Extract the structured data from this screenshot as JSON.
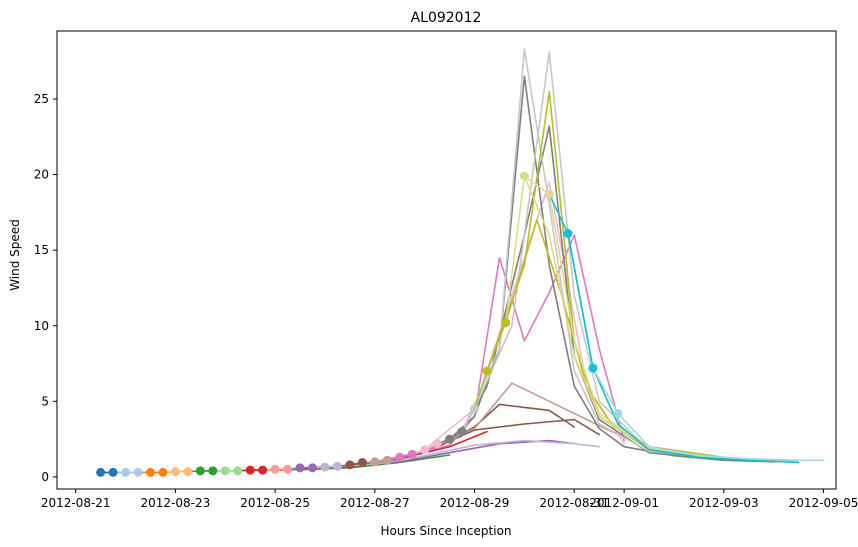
{
  "chart_data": {
    "type": "line",
    "title": "AL092012",
    "xlabel": "Hours Since Inception",
    "ylabel": "Wind Speed",
    "x_scale": "date",
    "xlim": [
      "2012-08-20T15:00",
      "2012-09-05T06:00"
    ],
    "ylim": [
      -0.8,
      29.5
    ],
    "x_ticks": [
      "2012-08-21",
      "2012-08-23",
      "2012-08-25",
      "2012-08-27",
      "2012-08-29",
      "2012-08-31",
      "2012-09-01",
      "2012-09-03",
      "2012-09-05"
    ],
    "x_tick_labels": [
      "2012-08-21",
      "2012-08-23",
      "2012-08-25",
      "2012-08-27",
      "2012-08-29",
      "2012-08-31",
      "2012-09-01",
      "2012-09-03",
      "2012-09-05"
    ],
    "y_ticks": [
      0,
      5,
      10,
      15,
      20,
      25
    ],
    "y_tick_labels": [
      "0",
      "5",
      "10",
      "15",
      "20",
      "25"
    ],
    "grid": false,
    "legend": "none",
    "observed_points": [
      {
        "x": "2012-08-21T12:00",
        "y": 0.3,
        "color": "#1f77b4"
      },
      {
        "x": "2012-08-21T18:00",
        "y": 0.3,
        "color": "#1f77b4"
      },
      {
        "x": "2012-08-22T00:00",
        "y": 0.3,
        "color": "#aec7e8"
      },
      {
        "x": "2012-08-22T06:00",
        "y": 0.3,
        "color": "#aec7e8"
      },
      {
        "x": "2012-08-22T12:00",
        "y": 0.3,
        "color": "#ff7f0e"
      },
      {
        "x": "2012-08-22T18:00",
        "y": 0.3,
        "color": "#ff7f0e"
      },
      {
        "x": "2012-08-23T00:00",
        "y": 0.35,
        "color": "#ffbb78"
      },
      {
        "x": "2012-08-23T06:00",
        "y": 0.35,
        "color": "#ffbb78"
      },
      {
        "x": "2012-08-23T12:00",
        "y": 0.4,
        "color": "#2ca02c"
      },
      {
        "x": "2012-08-23T18:00",
        "y": 0.4,
        "color": "#2ca02c"
      },
      {
        "x": "2012-08-24T00:00",
        "y": 0.4,
        "color": "#98df8a"
      },
      {
        "x": "2012-08-24T06:00",
        "y": 0.4,
        "color": "#98df8a"
      },
      {
        "x": "2012-08-24T12:00",
        "y": 0.45,
        "color": "#d62728"
      },
      {
        "x": "2012-08-24T18:00",
        "y": 0.45,
        "color": "#d62728"
      },
      {
        "x": "2012-08-25T00:00",
        "y": 0.5,
        "color": "#ff9896"
      },
      {
        "x": "2012-08-25T06:00",
        "y": 0.5,
        "color": "#ff9896"
      },
      {
        "x": "2012-08-25T12:00",
        "y": 0.6,
        "color": "#9467bd"
      },
      {
        "x": "2012-08-25T18:00",
        "y": 0.6,
        "color": "#9467bd"
      },
      {
        "x": "2012-08-26T00:00",
        "y": 0.65,
        "color": "#c5b0d5"
      },
      {
        "x": "2012-08-26T06:00",
        "y": 0.7,
        "color": "#c5b0d5"
      },
      {
        "x": "2012-08-26T12:00",
        "y": 0.8,
        "color": "#8c564b"
      },
      {
        "x": "2012-08-26T18:00",
        "y": 0.95,
        "color": "#8c564b"
      },
      {
        "x": "2012-08-27T00:00",
        "y": 1.0,
        "color": "#c49c94"
      },
      {
        "x": "2012-08-27T06:00",
        "y": 1.1,
        "color": "#c49c94"
      },
      {
        "x": "2012-08-27T12:00",
        "y": 1.3,
        "color": "#e377c2"
      },
      {
        "x": "2012-08-27T18:00",
        "y": 1.5,
        "color": "#e377c2"
      },
      {
        "x": "2012-08-28T00:00",
        "y": 1.8,
        "color": "#f7b6d2"
      },
      {
        "x": "2012-08-28T06:00",
        "y": 2.2,
        "color": "#f7b6d2"
      },
      {
        "x": "2012-08-28T12:00",
        "y": 2.5,
        "color": "#7f7f7f"
      },
      {
        "x": "2012-08-28T18:00",
        "y": 3.0,
        "color": "#7f7f7f"
      },
      {
        "x": "2012-08-29T00:00",
        "y": 4.5,
        "color": "#c7c7c7"
      },
      {
        "x": "2012-08-29T06:00",
        "y": 7.0,
        "color": "#bcbd22"
      },
      {
        "x": "2012-08-29T15:00",
        "y": 10.2,
        "color": "#bcbd22"
      },
      {
        "x": "2012-08-30T00:00",
        "y": 19.9,
        "color": "#dbdb8d"
      },
      {
        "x": "2012-08-30T12:00",
        "y": 18.7,
        "color": "#dbdb8d"
      },
      {
        "x": "2012-08-30T21:00",
        "y": 16.1,
        "color": "#17becf"
      },
      {
        "x": "2012-08-31T09:00",
        "y": 7.2,
        "color": "#17becf"
      },
      {
        "x": "2012-08-31T21:00",
        "y": 4.2,
        "color": "#9edae5"
      }
    ],
    "series": [
      {
        "color": "#1f77b4",
        "x": [
          "2012-08-21T12:00",
          "2012-08-21T18:00",
          "2012-08-22T00:00"
        ],
        "y": [
          0.3,
          0.3,
          0.3
        ]
      },
      {
        "color": "#aec7e8",
        "x": [
          "2012-08-22T00:00",
          "2012-08-22T06:00",
          "2012-08-22T12:00"
        ],
        "y": [
          0.3,
          0.3,
          0.3
        ]
      },
      {
        "color": "#ff7f0e",
        "x": [
          "2012-08-22T12:00",
          "2012-08-22T18:00",
          "2012-08-23T00:00"
        ],
        "y": [
          0.3,
          0.3,
          0.32
        ]
      },
      {
        "color": "#ffbb78",
        "x": [
          "2012-08-23T00:00",
          "2012-08-23T06:00",
          "2012-08-23T12:00"
        ],
        "y": [
          0.35,
          0.35,
          0.38
        ]
      },
      {
        "color": "#2ca02c",
        "x": [
          "2012-08-23T12:00",
          "2012-08-24T12:00",
          "2012-08-25T12:00",
          "2012-08-26T12:00",
          "2012-08-27T12:00",
          "2012-08-28T12:00"
        ],
        "y": [
          0.4,
          0.42,
          0.48,
          0.6,
          0.95,
          1.45
        ]
      },
      {
        "color": "#98df8a",
        "x": [
          "2012-08-24T00:00",
          "2012-08-24T12:00",
          "2012-08-25T00:00"
        ],
        "y": [
          0.4,
          0.42,
          0.46
        ]
      },
      {
        "color": "#d62728",
        "x": [
          "2012-08-24T12:00",
          "2012-08-25T12:00",
          "2012-08-26T12:00",
          "2012-08-27T12:00",
          "2012-08-28T12:00",
          "2012-08-29T06:00"
        ],
        "y": [
          0.45,
          0.52,
          0.7,
          1.2,
          2.0,
          3.0
        ]
      },
      {
        "color": "#ff9896",
        "x": [
          "2012-08-25T00:00",
          "2012-08-25T06:00",
          "2012-08-25T12:00"
        ],
        "y": [
          0.5,
          0.5,
          0.55
        ]
      },
      {
        "color": "#9467bd",
        "x": [
          "2012-08-25T12:00",
          "2012-08-26T12:00",
          "2012-08-27T12:00",
          "2012-08-28T12:00",
          "2012-08-29T12:00",
          "2012-08-30T12:00",
          "2012-08-31T00:00"
        ],
        "y": [
          0.6,
          0.7,
          1.0,
          1.6,
          2.2,
          2.4,
          2.2
        ]
      },
      {
        "color": "#c5b0d5",
        "x": [
          "2012-08-26T00:00",
          "2012-08-27T00:00",
          "2012-08-28T00:00",
          "2012-08-29T00:00",
          "2012-08-30T00:00",
          "2012-08-31T00:00",
          "2012-08-31T12:00"
        ],
        "y": [
          0.65,
          0.85,
          1.4,
          2.1,
          2.4,
          2.2,
          2.0
        ]
      },
      {
        "color": "#8c564b",
        "x": [
          "2012-08-26T12:00",
          "2012-08-27T12:00",
          "2012-08-28T12:00",
          "2012-08-29T00:00",
          "2012-08-29T12:00",
          "2012-08-30T12:00",
          "2012-08-31T00:00"
        ],
        "y": [
          0.8,
          1.2,
          2.4,
          3.3,
          4.8,
          4.4,
          3.3
        ]
      },
      {
        "color": "#8c564b",
        "x": [
          "2012-08-27T00:00",
          "2012-08-28T00:00",
          "2012-08-29T00:00",
          "2012-08-30T00:00",
          "2012-08-31T00:00",
          "2012-08-31T12:00"
        ],
        "y": [
          1.0,
          1.6,
          3.1,
          3.5,
          3.8,
          2.8
        ]
      },
      {
        "color": "#c49c94",
        "x": [
          "2012-08-27T00:00",
          "2012-08-28T00:00",
          "2012-08-29T00:00",
          "2012-08-29T18:00",
          "2012-08-30T12:00",
          "2012-08-31T06:00",
          "2012-09-01T00:00"
        ],
        "y": [
          1.0,
          1.7,
          3.2,
          6.2,
          5.0,
          3.8,
          2.6
        ]
      },
      {
        "color": "#e377c2",
        "x": [
          "2012-08-27T12:00",
          "2012-08-28T12:00",
          "2012-08-29T00:00",
          "2012-08-29T12:00",
          "2012-08-30T00:00",
          "2012-08-30T12:00",
          "2012-08-31T00:00",
          "2012-08-31T12:00",
          "2012-09-01T00:00"
        ],
        "y": [
          1.3,
          2.1,
          4.0,
          14.5,
          9.0,
          12.2,
          16.0,
          8.5,
          2.4
        ]
      },
      {
        "color": "#f7b6d2",
        "x": [
          "2012-08-28T00:00",
          "2012-08-29T00:00",
          "2012-08-29T18:00",
          "2012-08-30T12:00",
          "2012-08-31T06:00",
          "2012-09-01T00:00"
        ],
        "y": [
          1.8,
          4.5,
          12.0,
          19.5,
          6.0,
          2.2
        ]
      },
      {
        "color": "#7f7f7f",
        "x": [
          "2012-08-28T12:00",
          "2012-08-29T00:00",
          "2012-08-29T12:00",
          "2012-08-30T00:00",
          "2012-08-30T12:00",
          "2012-08-31T00:00",
          "2012-08-31T12:00",
          "2012-09-01T00:00",
          "2012-09-02T00:00",
          "2012-09-03T00:00",
          "2012-09-04T00:00"
        ],
        "y": [
          2.5,
          4.0,
          8.5,
          26.5,
          14.0,
          6.0,
          3.2,
          2.0,
          1.4,
          1.1,
          1.0
        ]
      },
      {
        "color": "#7f7f7f",
        "x": [
          "2012-08-28T18:00",
          "2012-08-29T06:00",
          "2012-08-30T00:00",
          "2012-08-30T12:00",
          "2012-08-31T00:00",
          "2012-08-31T12:00",
          "2012-09-01T12:00",
          "2012-09-03T00:00"
        ],
        "y": [
          3.0,
          6.0,
          16.0,
          23.2,
          8.0,
          3.8,
          1.6,
          1.1
        ]
      },
      {
        "color": "#c7c7c7",
        "x": [
          "2012-08-28T18:00",
          "2012-08-29T12:00",
          "2012-08-30T00:00",
          "2012-08-30T12:00",
          "2012-08-31T00:00",
          "2012-08-31T12:00",
          "2012-09-01T12:00",
          "2012-09-03T00:00",
          "2012-09-04T12:00"
        ],
        "y": [
          3.0,
          8.5,
          28.3,
          18.0,
          7.0,
          3.5,
          1.7,
          1.2,
          1.05
        ]
      },
      {
        "color": "#c7c7c7",
        "x": [
          "2012-08-29T00:00",
          "2012-08-29T18:00",
          "2012-08-30T12:00",
          "2012-08-31T00:00",
          "2012-08-31T12:00",
          "2012-09-01T12:00",
          "2012-09-03T00:00"
        ],
        "y": [
          4.5,
          10.0,
          28.1,
          12.0,
          5.0,
          1.8,
          1.2
        ]
      },
      {
        "color": "#bcbd22",
        "x": [
          "2012-08-29T06:00",
          "2012-08-30T00:00",
          "2012-08-30T12:00",
          "2012-08-31T00:00",
          "2012-08-31T12:00",
          "2012-09-01T12:00",
          "2012-09-03T00:00",
          "2012-09-04T12:00"
        ],
        "y": [
          7.0,
          14.0,
          25.5,
          9.0,
          4.0,
          1.8,
          1.2,
          1.1
        ]
      },
      {
        "color": "#bcbd22",
        "x": [
          "2012-08-29T15:00",
          "2012-08-30T06:00",
          "2012-08-30T18:00",
          "2012-08-31T06:00",
          "2012-08-31T18:00",
          "2012-09-01T12:00",
          "2012-09-03T00:00"
        ],
        "y": [
          10.2,
          17.0,
          12.0,
          6.0,
          3.5,
          2.0,
          1.3
        ]
      },
      {
        "color": "#dbdb8d",
        "x": [
          "2012-08-30T00:00",
          "2012-08-30T12:00",
          "2012-08-31T00:00",
          "2012-08-31T12:00",
          "2012-09-01T12:00",
          "2012-09-03T00:00"
        ],
        "y": [
          19.9,
          16.0,
          8.0,
          4.0,
          1.9,
          1.2
        ]
      },
      {
        "color": "#dbdb8d",
        "x": [
          "2012-08-30T12:00",
          "2012-08-31T00:00",
          "2012-08-31T12:00",
          "2012-09-01T12:00",
          "2012-09-03T00:00"
        ],
        "y": [
          18.7,
          9.0,
          4.2,
          1.9,
          1.2
        ]
      },
      {
        "color": "#17becf",
        "x": [
          "2012-08-30T21:00",
          "2012-08-31T09:00",
          "2012-08-31T21:00",
          "2012-09-01T12:00",
          "2012-09-02T12:00",
          "2012-09-03T12:00",
          "2012-09-04T12:00"
        ],
        "y": [
          16.1,
          7.2,
          3.5,
          1.8,
          1.3,
          1.1,
          0.95
        ]
      },
      {
        "color": "#9edae5",
        "x": [
          "2012-08-31T09:00",
          "2012-08-31T21:00",
          "2012-09-01T12:00",
          "2012-09-02T12:00",
          "2012-09-03T12:00",
          "2012-09-04T12:00",
          "2012-09-05T00:00"
        ],
        "y": [
          7.2,
          4.2,
          2.0,
          1.4,
          1.2,
          1.1,
          1.1
        ]
      }
    ]
  }
}
